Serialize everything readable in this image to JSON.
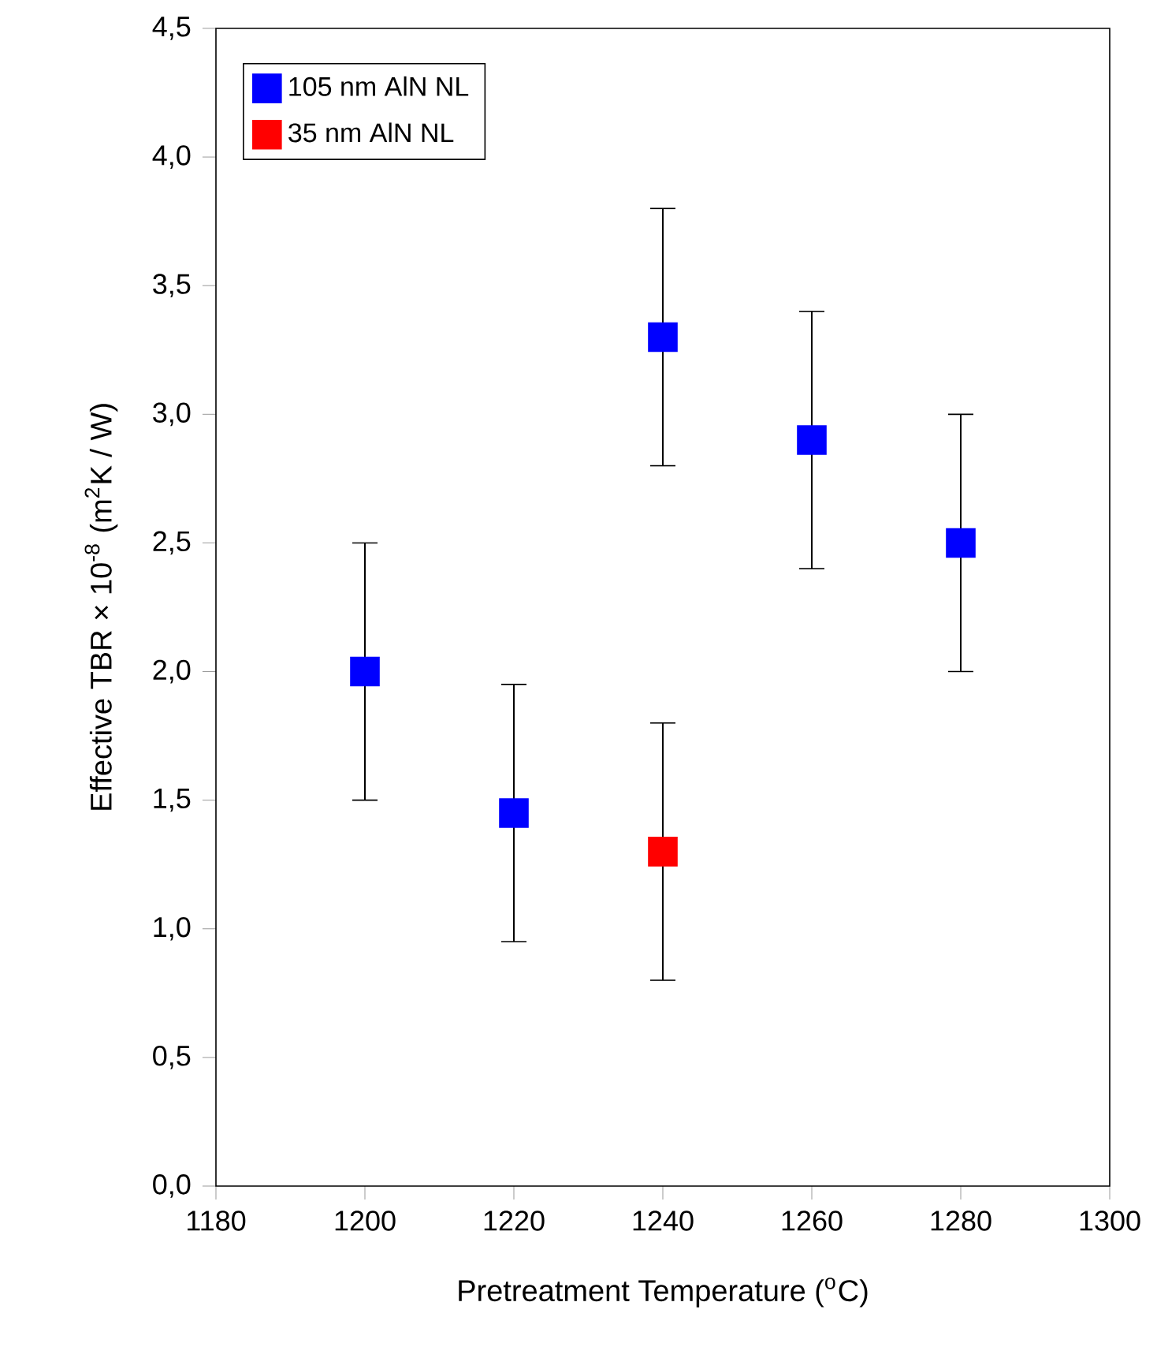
{
  "chart_data": {
    "type": "scatter",
    "xlabel": "Pretreatment Temperature ($^{o}$C)",
    "ylabel": "Effective TBR × 10$^{-8}$ (m$^{2}$K / W)",
    "series": [
      {
        "name": "105 nm AlN NL",
        "color": "#0000ff",
        "x": [
          1200,
          1220,
          1240,
          1260,
          1280
        ],
        "values": [
          2.0,
          1.45,
          3.3,
          2.9,
          2.5
        ],
        "errors": [
          0.5,
          0.5,
          0.5,
          0.5,
          0.5
        ]
      },
      {
        "name": "35 nm AlN NL",
        "color": "#ff0000",
        "x": [
          1240
        ],
        "values": [
          1.3
        ],
        "errors": [
          0.5
        ]
      }
    ],
    "xlim": [
      1180,
      1300
    ],
    "xticks": [
      1180,
      1200,
      1220,
      1240,
      1260,
      1280,
      1300
    ],
    "ylim": [
      0,
      4.5
    ],
    "yticks": [
      {
        "value": 0,
        "label": "0,0"
      },
      {
        "value": 0.5,
        "label": "0,5"
      },
      {
        "value": 1,
        "label": "1,0"
      },
      {
        "value": 1.5,
        "label": "1,5"
      },
      {
        "value": 2,
        "label": "2,0"
      },
      {
        "value": 2.5,
        "label": "2,5"
      },
      {
        "value": 3,
        "label": "3,0"
      },
      {
        "value": 3.5,
        "label": "3,5"
      },
      {
        "value": 4,
        "label": "4,0"
      },
      {
        "value": 4.5,
        "label": "4,5"
      }
    ],
    "legend": "top left",
    "marker": "square",
    "grid": false
  }
}
